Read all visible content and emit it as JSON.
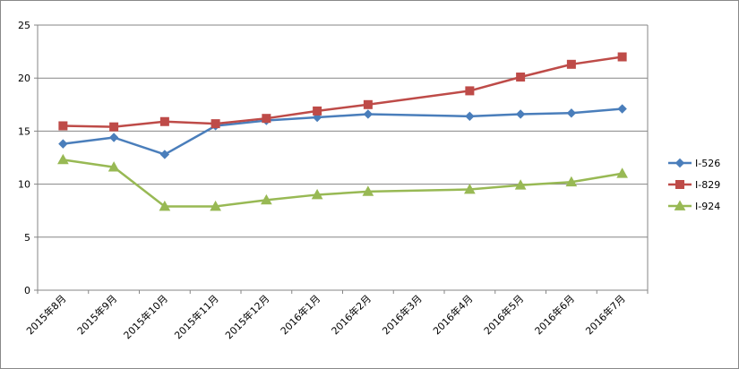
{
  "chart_data": {
    "type": "line",
    "title": "",
    "xlabel": "",
    "ylabel": "",
    "categories": [
      "2015年8月",
      "2015年9月",
      "2015年10月",
      "2015年11月",
      "2015年12月",
      "2016年1月",
      "2016年2月",
      "2016年3月",
      "2016年4月",
      "2016年5月",
      "2016年6月",
      "2016年7月"
    ],
    "ylim": [
      0,
      25
    ],
    "yticks": [
      0,
      5,
      10,
      15,
      20,
      25
    ],
    "grid": true,
    "legend_position": "right",
    "series": [
      {
        "name": "I-526",
        "color": "#4a7ebb",
        "marker": "diamond",
        "values": [
          13.8,
          14.4,
          12.8,
          15.5,
          16.0,
          16.3,
          16.6,
          null,
          16.4,
          16.6,
          16.7,
          17.1
        ]
      },
      {
        "name": "I-829",
        "color": "#be4b48",
        "marker": "square",
        "values": [
          15.5,
          15.4,
          15.9,
          15.7,
          16.2,
          16.9,
          17.5,
          null,
          18.8,
          20.1,
          21.3,
          22.0
        ]
      },
      {
        "name": "I-924",
        "color": "#98b954",
        "marker": "triangle",
        "values": [
          12.3,
          11.6,
          7.9,
          7.9,
          8.5,
          9.0,
          9.3,
          null,
          9.5,
          9.9,
          10.2,
          11.0
        ]
      }
    ]
  }
}
